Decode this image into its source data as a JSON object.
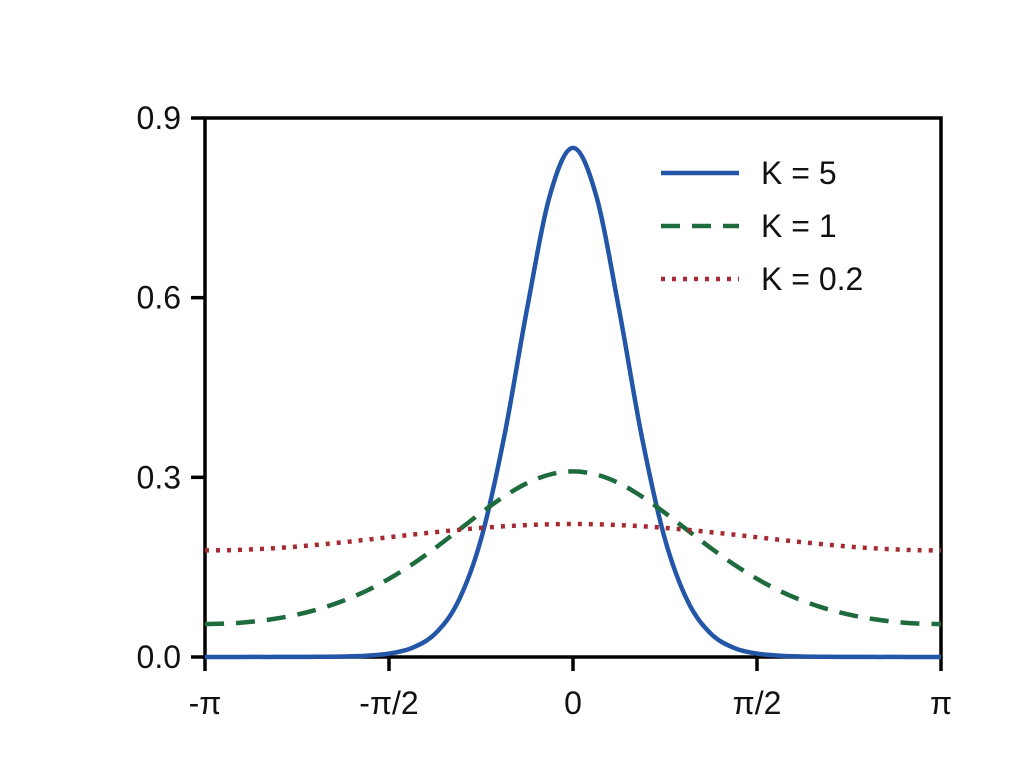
{
  "chart_data": {
    "type": "line",
    "title": "",
    "xlabel": "",
    "ylabel": "",
    "xlim": [
      -3.1416,
      3.1416
    ],
    "ylim": [
      0,
      0.9
    ],
    "grid": false,
    "legend": {
      "position": "upper-right",
      "boxed": false,
      "entries": [
        "K = 5",
        "K = 1",
        "K = 0.2"
      ]
    },
    "x_ticks": {
      "positions": [
        -3.1416,
        -1.5708,
        0,
        1.5708,
        3.1416
      ],
      "labels": [
        "-π",
        "-π/2",
        "0",
        "π/2",
        "π"
      ]
    },
    "y_ticks": {
      "positions": [
        0,
        0.3,
        0.6,
        0.9
      ],
      "labels": [
        "0.0",
        "0.3",
        "0.6",
        "0.9"
      ]
    },
    "x": [
      -3.1416,
      -2.9452,
      -2.7489,
      -2.5525,
      -2.3562,
      -2.1598,
      -1.9635,
      -1.7671,
      -1.5708,
      -1.3744,
      -1.1781,
      -0.9817,
      -0.7854,
      -0.589,
      -0.3927,
      -0.1963,
      0,
      0.1963,
      0.3927,
      0.589,
      0.7854,
      0.9817,
      1.1781,
      1.3744,
      1.5708,
      1.7671,
      1.9635,
      2.1598,
      2.3562,
      2.5525,
      2.7489,
      2.9452,
      3.1416
    ],
    "series": [
      {
        "name": "K = 5",
        "style": "solid",
        "color": "#2456A8",
        "values": [
          0.0,
          0.0,
          0.0001,
          0.0001,
          0.0002,
          0.0004,
          0.0008,
          0.0022,
          0.0057,
          0.0152,
          0.0388,
          0.0921,
          0.1965,
          0.3661,
          0.5809,
          0.7715,
          0.85,
          0.7715,
          0.5809,
          0.3661,
          0.1965,
          0.0921,
          0.0388,
          0.0152,
          0.0057,
          0.0022,
          0.0008,
          0.0004,
          0.0002,
          0.0001,
          0.0001,
          0.0,
          0.0
        ]
      },
      {
        "name": "K = 1",
        "style": "dashed",
        "color": "#1E6B3E",
        "values": [
          0.055,
          0.0559,
          0.0587,
          0.0636,
          0.0708,
          0.0807,
          0.0937,
          0.1102,
          0.1305,
          0.1545,
          0.1817,
          0.211,
          0.2406,
          0.2679,
          0.2902,
          0.3048,
          0.3099,
          0.3048,
          0.2902,
          0.2679,
          0.2406,
          0.211,
          0.1817,
          0.1545,
          0.1305,
          0.1102,
          0.0937,
          0.0807,
          0.0708,
          0.0636,
          0.0587,
          0.0559,
          0.055
        ]
      },
      {
        "name": "K = 0.2",
        "style": "dotted",
        "color": "#A62A31",
        "values": [
          0.178,
          0.1784,
          0.1797,
          0.1817,
          0.1844,
          0.1878,
          0.1916,
          0.1957,
          0.2,
          0.2043,
          0.2084,
          0.2122,
          0.2156,
          0.2183,
          0.2203,
          0.2216,
          0.222,
          0.2216,
          0.2203,
          0.2183,
          0.2156,
          0.2122,
          0.2084,
          0.2043,
          0.2,
          0.1957,
          0.1916,
          0.1878,
          0.1844,
          0.1817,
          0.1797,
          0.1784,
          0.178
        ]
      }
    ]
  },
  "colors": {
    "background": "#FFFFFF",
    "axis": "#000000",
    "text": "#111111"
  }
}
